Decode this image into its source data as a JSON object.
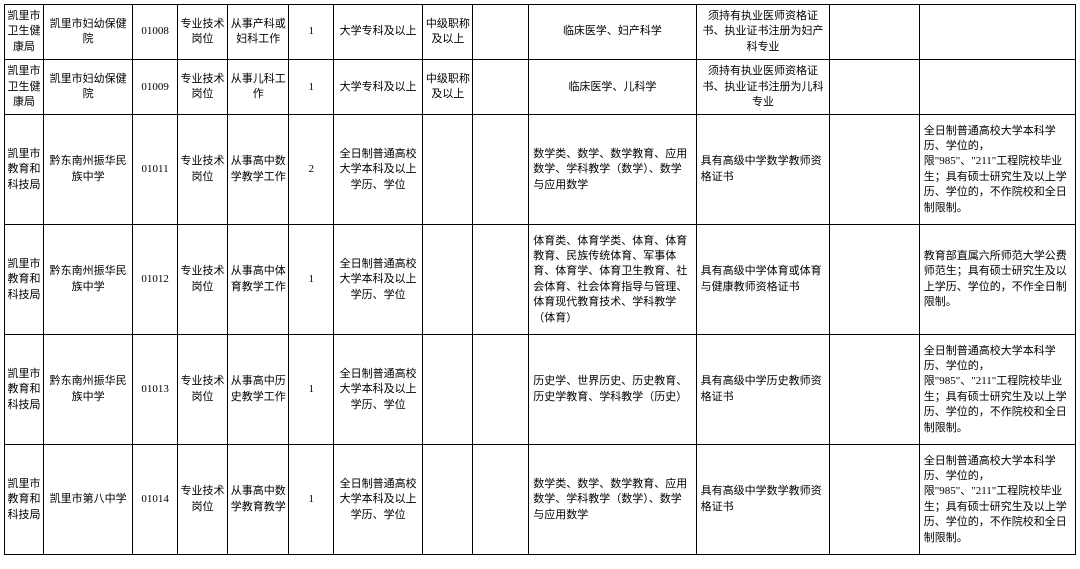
{
  "table": {
    "border_color": "#000000",
    "font_family": "SimSun",
    "cell_fontsize": 11,
    "background_color": "#ffffff",
    "text_color": "#000000",
    "columns": [
      {
        "key": "dept",
        "width_pct": 3.5
      },
      {
        "key": "unit",
        "width_pct": 8
      },
      {
        "key": "code",
        "width_pct": 4
      },
      {
        "key": "posttype",
        "width_pct": 4.5
      },
      {
        "key": "duty",
        "width_pct": 5.5
      },
      {
        "key": "count",
        "width_pct": 4
      },
      {
        "key": "edu",
        "width_pct": 8
      },
      {
        "key": "title",
        "width_pct": 4.5
      },
      {
        "key": "blank1",
        "width_pct": 5
      },
      {
        "key": "major",
        "width_pct": 15
      },
      {
        "key": "cert",
        "width_pct": 12
      },
      {
        "key": "blank2",
        "width_pct": 8
      },
      {
        "key": "remark",
        "width_pct": 14
      }
    ],
    "rows": [
      {
        "dept": "凯里市卫生健康局",
        "unit": "凯里市妇幼保健院",
        "code": "01008",
        "posttype": "专业技术岗位",
        "duty": "从事产科或妇科工作",
        "count": "1",
        "edu": "大学专科及以上",
        "title": "中级职称及以上",
        "blank1": "",
        "major": "临床医学、妇产科学",
        "cert": "须持有执业医师资格证书、执业证书注册为妇产科专业",
        "blank2": "",
        "remark": ""
      },
      {
        "dept": "凯里市卫生健康局",
        "unit": "凯里市妇幼保健院",
        "code": "01009",
        "posttype": "专业技术岗位",
        "duty": "从事儿科工作",
        "count": "1",
        "edu": "大学专科及以上",
        "title": "中级职称及以上",
        "blank1": "",
        "major": "临床医学、儿科学",
        "cert": "须持有执业医师资格证书、执业证书注册为儿科专业",
        "blank2": "",
        "remark": ""
      },
      {
        "dept": "凯里市教育和科技局",
        "unit": "黔东南州振华民族中学",
        "code": "01011",
        "posttype": "专业技术岗位",
        "duty": "从事高中数学教学工作",
        "count": "2",
        "edu": "全日制普通高校大学本科及以上学历、学位",
        "title": "",
        "blank1": "",
        "major": "数学类、数学、数学教育、应用数学、学科教学（数学）、数学与应用数学",
        "cert": "具有高级中学数学教师资格证书",
        "blank2": "",
        "remark": "全日制普通高校大学本科学历、学位的，限\"985\"、\"211\"工程院校毕业生；具有硕士研究生及以上学历、学位的，不作院校和全日制限制。"
      },
      {
        "dept": "凯里市教育和科技局",
        "unit": "黔东南州振华民族中学",
        "code": "01012",
        "posttype": "专业技术岗位",
        "duty": "从事高中体育教学工作",
        "count": "1",
        "edu": "全日制普通高校大学本科及以上学历、学位",
        "title": "",
        "blank1": "",
        "major": "体育类、体育学类、体育、体育教育、民族传统体育、军事体育、体育学、体育卫生教育、社会体育、社会体育指导与管理、体育现代教育技术、学科教学（体育）",
        "cert": "具有高级中学体育或体育与健康教师资格证书",
        "blank2": "",
        "remark": "教育部直属六所师范大学公费师范生；具有硕士研究生及以上学历、学位的，不作全日制限制。"
      },
      {
        "dept": "凯里市教育和科技局",
        "unit": "黔东南州振华民族中学",
        "code": "01013",
        "posttype": "专业技术岗位",
        "duty": "从事高中历史教学工作",
        "count": "1",
        "edu": "全日制普通高校大学本科及以上学历、学位",
        "title": "",
        "blank1": "",
        "major": "历史学、世界历史、历史教育、历史学教育、学科教学（历史）",
        "cert": "具有高级中学历史教师资格证书",
        "blank2": "",
        "remark": "全日制普通高校大学本科学历、学位的，限\"985\"、\"211\"工程院校毕业生；具有硕士研究生及以上学历、学位的，不作院校和全日制限制。"
      },
      {
        "dept": "凯里市教育和科技局",
        "unit": "凯里市第八中学",
        "code": "01014",
        "posttype": "专业技术岗位",
        "duty": "从事高中数学教育教学",
        "count": "1",
        "edu": "全日制普通高校大学本科及以上学历、学位",
        "title": "",
        "blank1": "",
        "major": "数学类、数学、数学教育、应用数学、学科教学（数学）、数学与应用数学",
        "cert": "具有高级中学数学教师资格证书",
        "blank2": "",
        "remark": "全日制普通高校大学本科学历、学位的，限\"985\"、\"211\"工程院校毕业生；具有硕士研究生及以上学历、学位的，不作院校和全日制限制。"
      }
    ]
  }
}
